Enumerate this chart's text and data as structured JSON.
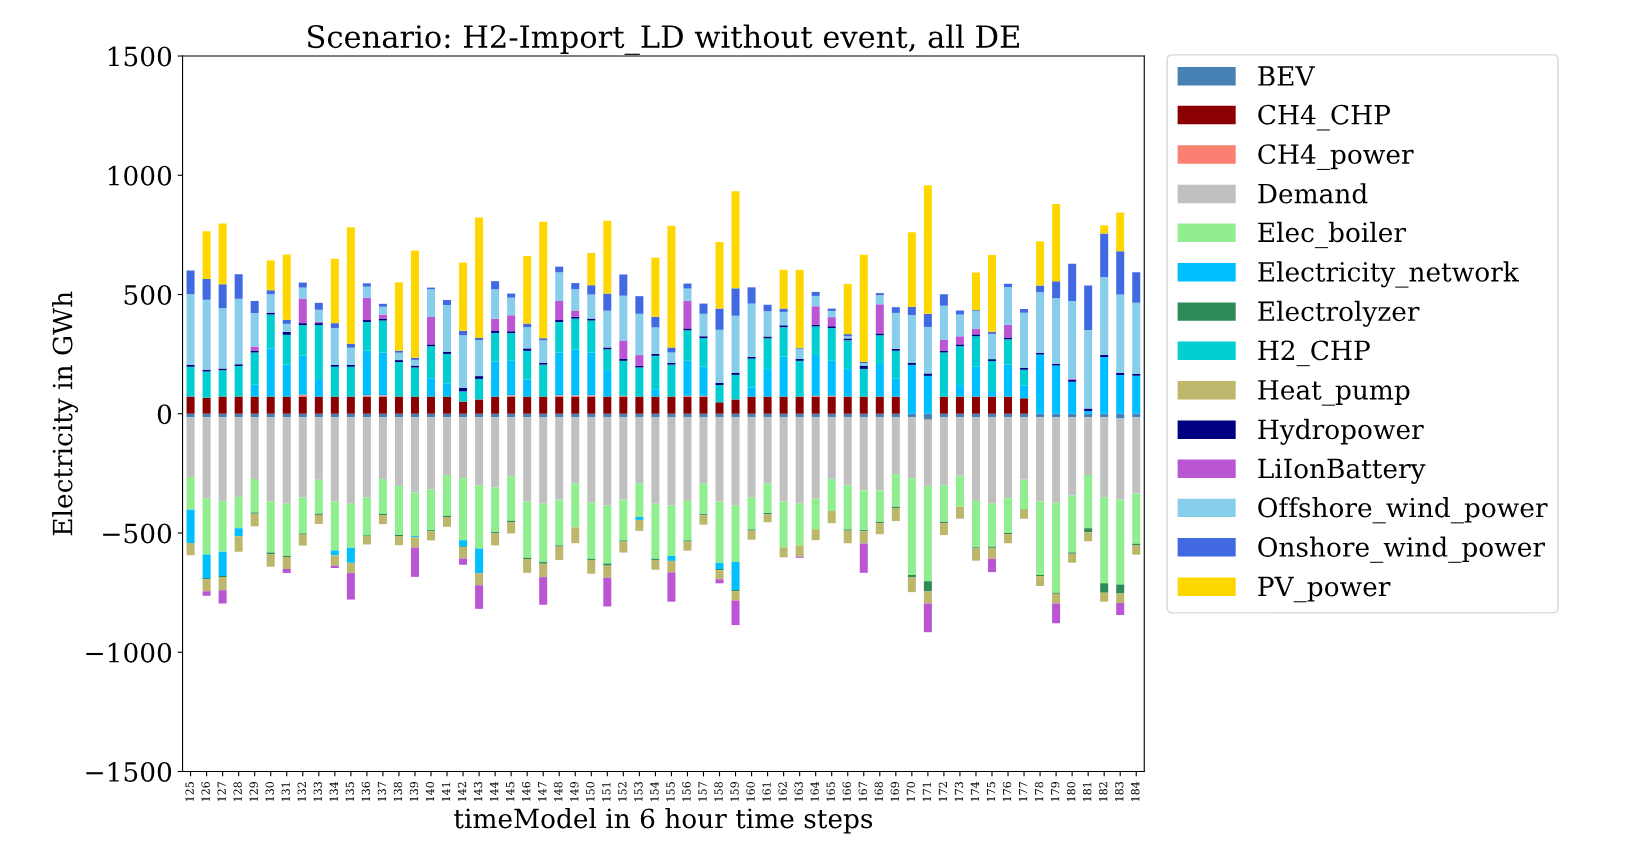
{
  "chart_data": {
    "type": "bar",
    "stacked": true,
    "title": "Scenario: H2-Import_LD without event, all DE",
    "xlabel": "timeModel in 6 hour time steps",
    "ylabel": "Electricity in GWh",
    "categories": [
      "125",
      "126",
      "127",
      "128",
      "129",
      "130",
      "131",
      "132",
      "133",
      "134",
      "135",
      "136",
      "137",
      "138",
      "139",
      "140",
      "141",
      "142",
      "143",
      "144",
      "145",
      "146",
      "147",
      "148",
      "149",
      "150",
      "151",
      "152",
      "153",
      "154",
      "155",
      "156",
      "157",
      "158",
      "159",
      "160",
      "161",
      "162",
      "163",
      "164",
      "165",
      "166",
      "167",
      "168",
      "169",
      "170",
      "171",
      "172",
      "173",
      "174",
      "175",
      "176",
      "177",
      "178",
      "179",
      "180",
      "181",
      "182",
      "183",
      "184"
    ],
    "ylim": [
      -1500,
      1500
    ],
    "yticks": [
      -1500,
      -1000,
      -500,
      0,
      500,
      1000,
      1500
    ],
    "grid": false,
    "legend": "right",
    "series": [
      {
        "name": "BEV",
        "color": "#4682b4",
        "values": [
          -15,
          -15,
          -15,
          -15,
          -15,
          -15,
          -15,
          -15,
          -15,
          -15,
          -15,
          -15,
          -15,
          -15,
          -15,
          -15,
          -15,
          -15,
          -15,
          -15,
          -15,
          -15,
          -15,
          -15,
          -15,
          -15,
          -15,
          -15,
          -15,
          -15,
          -15,
          -15,
          -15,
          -15,
          -15,
          -15,
          -15,
          -15,
          -15,
          -15,
          -15,
          -15,
          -15,
          -15,
          -15,
          -15,
          -25,
          -15,
          -15,
          -15,
          -15,
          -15,
          -15,
          -15,
          -15,
          -15,
          -15,
          -15,
          -20,
          -15
        ]
      },
      {
        "name": "CH4_CHP",
        "color": "#8b0000",
        "values": [
          72,
          67,
          72,
          72,
          72,
          72,
          72,
          72,
          72,
          72,
          72,
          72,
          72,
          72,
          72,
          72,
          72,
          51,
          60,
          72,
          72,
          72,
          72,
          72,
          72,
          72,
          72,
          72,
          72,
          72,
          72,
          72,
          72,
          48,
          60,
          72,
          72,
          72,
          72,
          72,
          72,
          72,
          72,
          72,
          72,
          0,
          0,
          72,
          72,
          72,
          72,
          72,
          65,
          0,
          0,
          0,
          0,
          0,
          0,
          0
        ]
      },
      {
        "name": "CH4_power",
        "color": "#fa8072",
        "values": [
          0,
          0,
          0,
          0,
          0,
          0,
          0,
          8,
          0,
          0,
          0,
          5,
          5,
          0,
          0,
          0,
          0,
          0,
          0,
          0,
          5,
          0,
          0,
          5,
          5,
          5,
          0,
          3,
          0,
          0,
          0,
          3,
          3,
          0,
          0,
          0,
          0,
          0,
          0,
          3,
          3,
          0,
          0,
          0,
          0,
          0,
          0,
          0,
          0,
          0,
          0,
          0,
          0,
          0,
          0,
          0,
          0,
          0,
          0,
          0
        ]
      },
      {
        "name": "Demand",
        "color": "#c0c0c0",
        "values": [
          -250,
          -339,
          -350,
          -333,
          -259,
          -353,
          -362,
          -336,
          -262,
          -353,
          -362,
          -336,
          -259,
          -288,
          -315,
          -302,
          -242,
          -255,
          -285,
          -293,
          -247,
          -353,
          -362,
          -345,
          -276,
          -357,
          -370,
          -345,
          -276,
          -362,
          -370,
          -350,
          -276,
          -353,
          -370,
          -336,
          -276,
          -353,
          -362,
          -341,
          -259,
          -285,
          -307,
          -307,
          -238,
          -255,
          -278,
          -285,
          -245,
          -350,
          -362,
          -339,
          -262,
          -353,
          -358,
          -327,
          -242,
          -336,
          -340,
          -319
        ]
      },
      {
        "name": "Elec_boiler",
        "color": "#90ee90",
        "values": [
          -137,
          -236,
          -214,
          -132,
          -140,
          -214,
          -219,
          -151,
          -142,
          -205,
          -185,
          -159,
          -146,
          -205,
          -183,
          -171,
          -171,
          -260,
          -265,
          -188,
          -187,
          -236,
          -245,
          -192,
          -185,
          -236,
          -243,
          -171,
          -142,
          -231,
          -211,
          -166,
          -130,
          -257,
          -236,
          -134,
          -125,
          -193,
          -176,
          -128,
          -134,
          -185,
          -166,
          -132,
          -137,
          -406,
          -399,
          -154,
          -130,
          -195,
          -180,
          -146,
          -122,
          -308,
          -377,
          -240,
          -223,
          -360,
          -356,
          -211
        ]
      },
      {
        "name": "Electricity_network",
        "color": "#00bfff",
        "values": [
          -140,
          -99,
          -101,
          -34,
          50,
          202,
          134,
          164,
          74,
          -21,
          -63,
          188,
          180,
          0,
          -5,
          77,
          56,
          -26,
          -103,
          147,
          145,
          72,
          0,
          180,
          192,
          180,
          111,
          0,
          -12,
          31,
          -21,
          147,
          122,
          -26,
          -118,
          39,
          116,
          168,
          0,
          171,
          147,
          116,
          0,
          137,
          77,
          205,
          159,
          0,
          48,
          125,
          24,
          134,
          55,
          248,
          202,
          134,
          12,
          238,
          163,
          159
        ]
      },
      {
        "name": "Electrolyzer",
        "color": "#2e8b57",
        "values": [
          0,
          -5,
          -5,
          0,
          -5,
          -8,
          -5,
          -5,
          -5,
          0,
          0,
          -5,
          -5,
          -5,
          0,
          -5,
          -5,
          -5,
          0,
          -5,
          -5,
          -5,
          -7,
          -5,
          0,
          -5,
          -9,
          -5,
          0,
          -5,
          0,
          -5,
          -5,
          -5,
          -5,
          -5,
          -5,
          0,
          0,
          0,
          0,
          -5,
          -5,
          -5,
          -5,
          -9,
          -43,
          -5,
          0,
          -5,
          -5,
          -5,
          0,
          -5,
          -5,
          -5,
          -17,
          -39,
          -38,
          -5
        ]
      },
      {
        "name": "H2_CHP",
        "color": "#00ced1",
        "values": [
          125,
          110,
          110,
          128,
          135,
          142,
          125,
          128,
          226,
          125,
          125,
          120,
          134,
          145,
          122,
          134,
          123,
          43,
          86,
          120,
          116,
          120,
          134,
          128,
          130,
          134,
          87,
          147,
          122,
          140,
          134,
          128,
          120,
          72,
          103,
          120,
          128,
          123,
          150,
          120,
          137,
          120,
          116,
          120,
          115,
          0,
          0,
          185,
          163,
          128,
          125,
          106,
          65,
          0,
          0,
          0,
          0,
          0,
          0,
          0
        ]
      },
      {
        "name": "Heat_pump",
        "color": "#bdb76b",
        "values": [
          -51,
          -50,
          -55,
          -65,
          -53,
          -51,
          -50,
          -46,
          -38,
          -43,
          -43,
          -33,
          -38,
          -38,
          -43,
          -38,
          -41,
          -46,
          -51,
          -51,
          -48,
          -58,
          -56,
          -56,
          -67,
          -58,
          -51,
          -46,
          -46,
          -41,
          -48,
          -38,
          -39,
          -38,
          -39,
          -38,
          -34,
          -41,
          -46,
          -46,
          -51,
          -53,
          -51,
          -46,
          -55,
          -63,
          -51,
          -50,
          -50,
          -51,
          -46,
          -38,
          -41,
          -41,
          -41,
          -38,
          -38,
          -38,
          -39,
          -41
        ]
      },
      {
        "name": "Hydropower",
        "color": "#000080",
        "values": [
          8,
          8,
          8,
          8,
          8,
          8,
          12,
          8,
          8,
          8,
          8,
          8,
          8,
          8,
          8,
          8,
          8,
          14,
          12,
          10,
          8,
          10,
          8,
          8,
          8,
          8,
          8,
          8,
          8,
          8,
          8,
          8,
          8,
          9,
          8,
          8,
          8,
          8,
          8,
          8,
          8,
          8,
          14,
          8,
          8,
          9,
          10,
          8,
          8,
          8,
          8,
          8,
          8,
          8,
          8,
          9,
          10,
          8,
          8,
          8
        ]
      },
      {
        "name": "LiIonBattery",
        "color": "#ba55d3",
        "values": [
          0,
          -19,
          -56,
          0,
          17,
          0,
          -17,
          103,
          5,
          -10,
          -111,
          94,
          17,
          0,
          -123,
          115,
          0,
          -26,
          -99,
          50,
          67,
          0,
          -116,
          80,
          26,
          0,
          -120,
          77,
          44,
          0,
          -123,
          116,
          0,
          -17,
          -103,
          0,
          0,
          0,
          -5,
          77,
          38,
          0,
          -123,
          122,
          0,
          0,
          -120,
          46,
          34,
          24,
          -56,
          53,
          0,
          0,
          -82,
          5,
          0,
          0,
          -51,
          0
        ]
      },
      {
        "name": "Offshore_wind_power",
        "color": "#87ceeb",
        "values": [
          296,
          293,
          252,
          274,
          140,
          77,
          34,
          46,
          51,
          154,
          72,
          46,
          33,
          31,
          24,
          116,
          197,
          221,
          151,
          123,
          74,
          89,
          94,
          120,
          89,
          101,
          154,
          188,
          173,
          111,
          43,
          51,
          94,
          223,
          240,
          223,
          106,
          56,
          43,
          43,
          26,
          9,
          10,
          38,
          151,
          200,
          195,
          142,
          91,
          75,
          106,
          158,
          231,
          253,
          274,
          325,
          329,
          327,
          329,
          298
        ]
      },
      {
        "name": "Onshore_wind_power",
        "color": "#4169e1",
        "values": [
          100,
          87,
          101,
          103,
          51,
          17,
          17,
          21,
          29,
          21,
          17,
          14,
          12,
          9,
          9,
          7,
          21,
          19,
          9,
          34,
          17,
          15,
          9,
          24,
          26,
          39,
          72,
          89,
          74,
          45,
          21,
          21,
          43,
          89,
          115,
          68,
          27,
          14,
          3,
          17,
          10,
          9,
          5,
          9,
          24,
          34,
          55,
          48,
          17,
          3,
          9,
          14,
          15,
          29,
          72,
          156,
          187,
          183,
          181,
          128
        ]
      },
      {
        "name": "PV_power",
        "color": "#ffd700",
        "values": [
          0,
          200,
          255,
          0,
          0,
          125,
          274,
          0,
          0,
          270,
          488,
          0,
          0,
          286,
          450,
          0,
          0,
          286,
          505,
          0,
          0,
          284,
          488,
          0,
          0,
          135,
          305,
          0,
          0,
          248,
          510,
          0,
          0,
          279,
          407,
          0,
          0,
          163,
          327,
          0,
          0,
          211,
          450,
          0,
          0,
          313,
          539,
          0,
          0,
          157,
          322,
          0,
          0,
          185,
          324,
          0,
          0,
          34,
          163,
          0
        ]
      }
    ]
  }
}
